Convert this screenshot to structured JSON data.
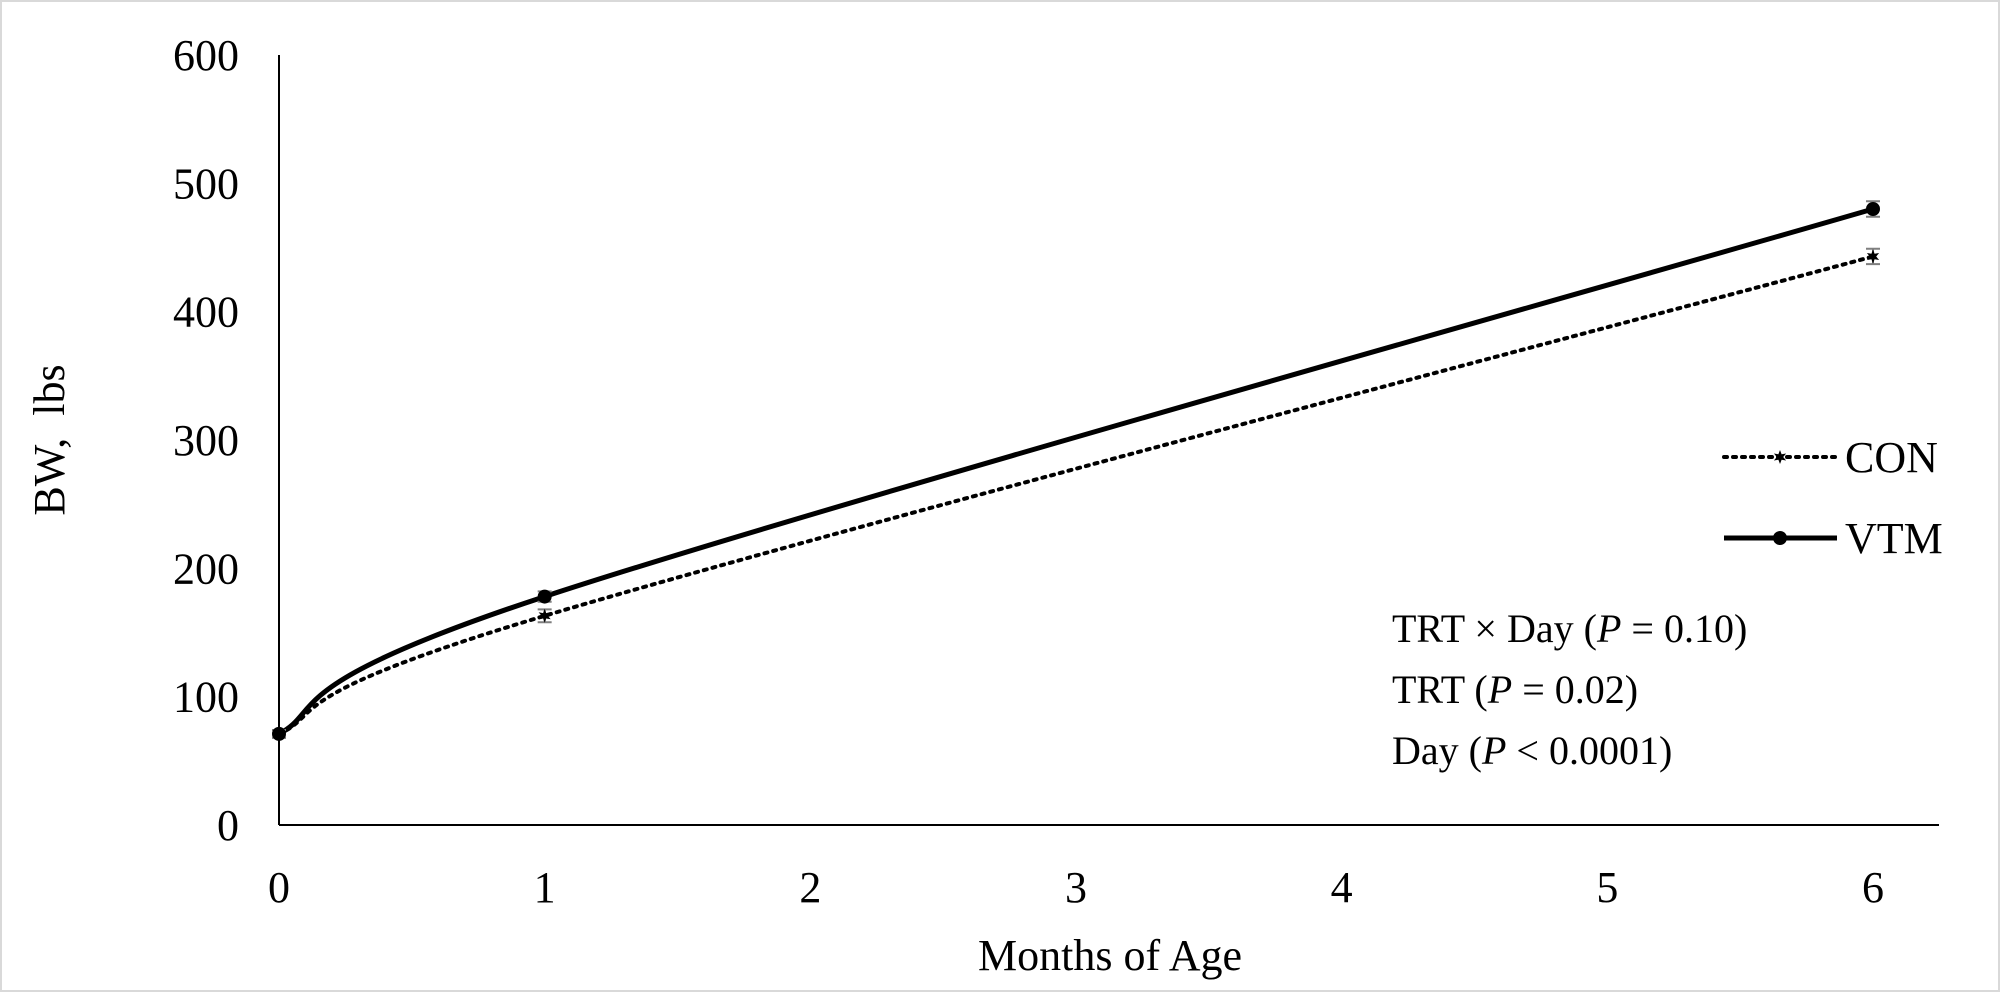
{
  "chart_data": {
    "type": "line",
    "xlabel": "Months of Age",
    "ylabel": "BW,  lbs",
    "x": [
      0,
      1,
      6
    ],
    "xticks": [
      "0",
      "1",
      "2",
      "3",
      "4",
      "5",
      "6"
    ],
    "xlim": [
      0,
      6
    ],
    "yticks": [
      "0",
      "100",
      "200",
      "300",
      "400",
      "500",
      "600"
    ],
    "ylim": [
      0,
      600
    ],
    "grid": false,
    "legend_position": "right",
    "series": [
      {
        "name": "CON",
        "values": [
          71,
          163,
          443
        ],
        "error": [
          3,
          5,
          6
        ],
        "style": "dotted",
        "marker": "star"
      },
      {
        "name": "VTM",
        "values": [
          71,
          178,
          480
        ],
        "error": [
          3,
          4,
          6
        ],
        "style": "solid",
        "marker": "circle"
      }
    ],
    "annotations": [
      {
        "prefix": "TRT × Day (",
        "italic": "P",
        "suffix": " = 0.10)"
      },
      {
        "prefix": "TRT (",
        "italic": "P",
        "suffix": " = 0.02)"
      },
      {
        "prefix": "Day (",
        "italic": "P",
        "suffix": " < 0.0001)"
      }
    ],
    "colors": {
      "line": "#000000",
      "errorbar": "#7f7f7f",
      "border": "#d9d9d9"
    }
  }
}
